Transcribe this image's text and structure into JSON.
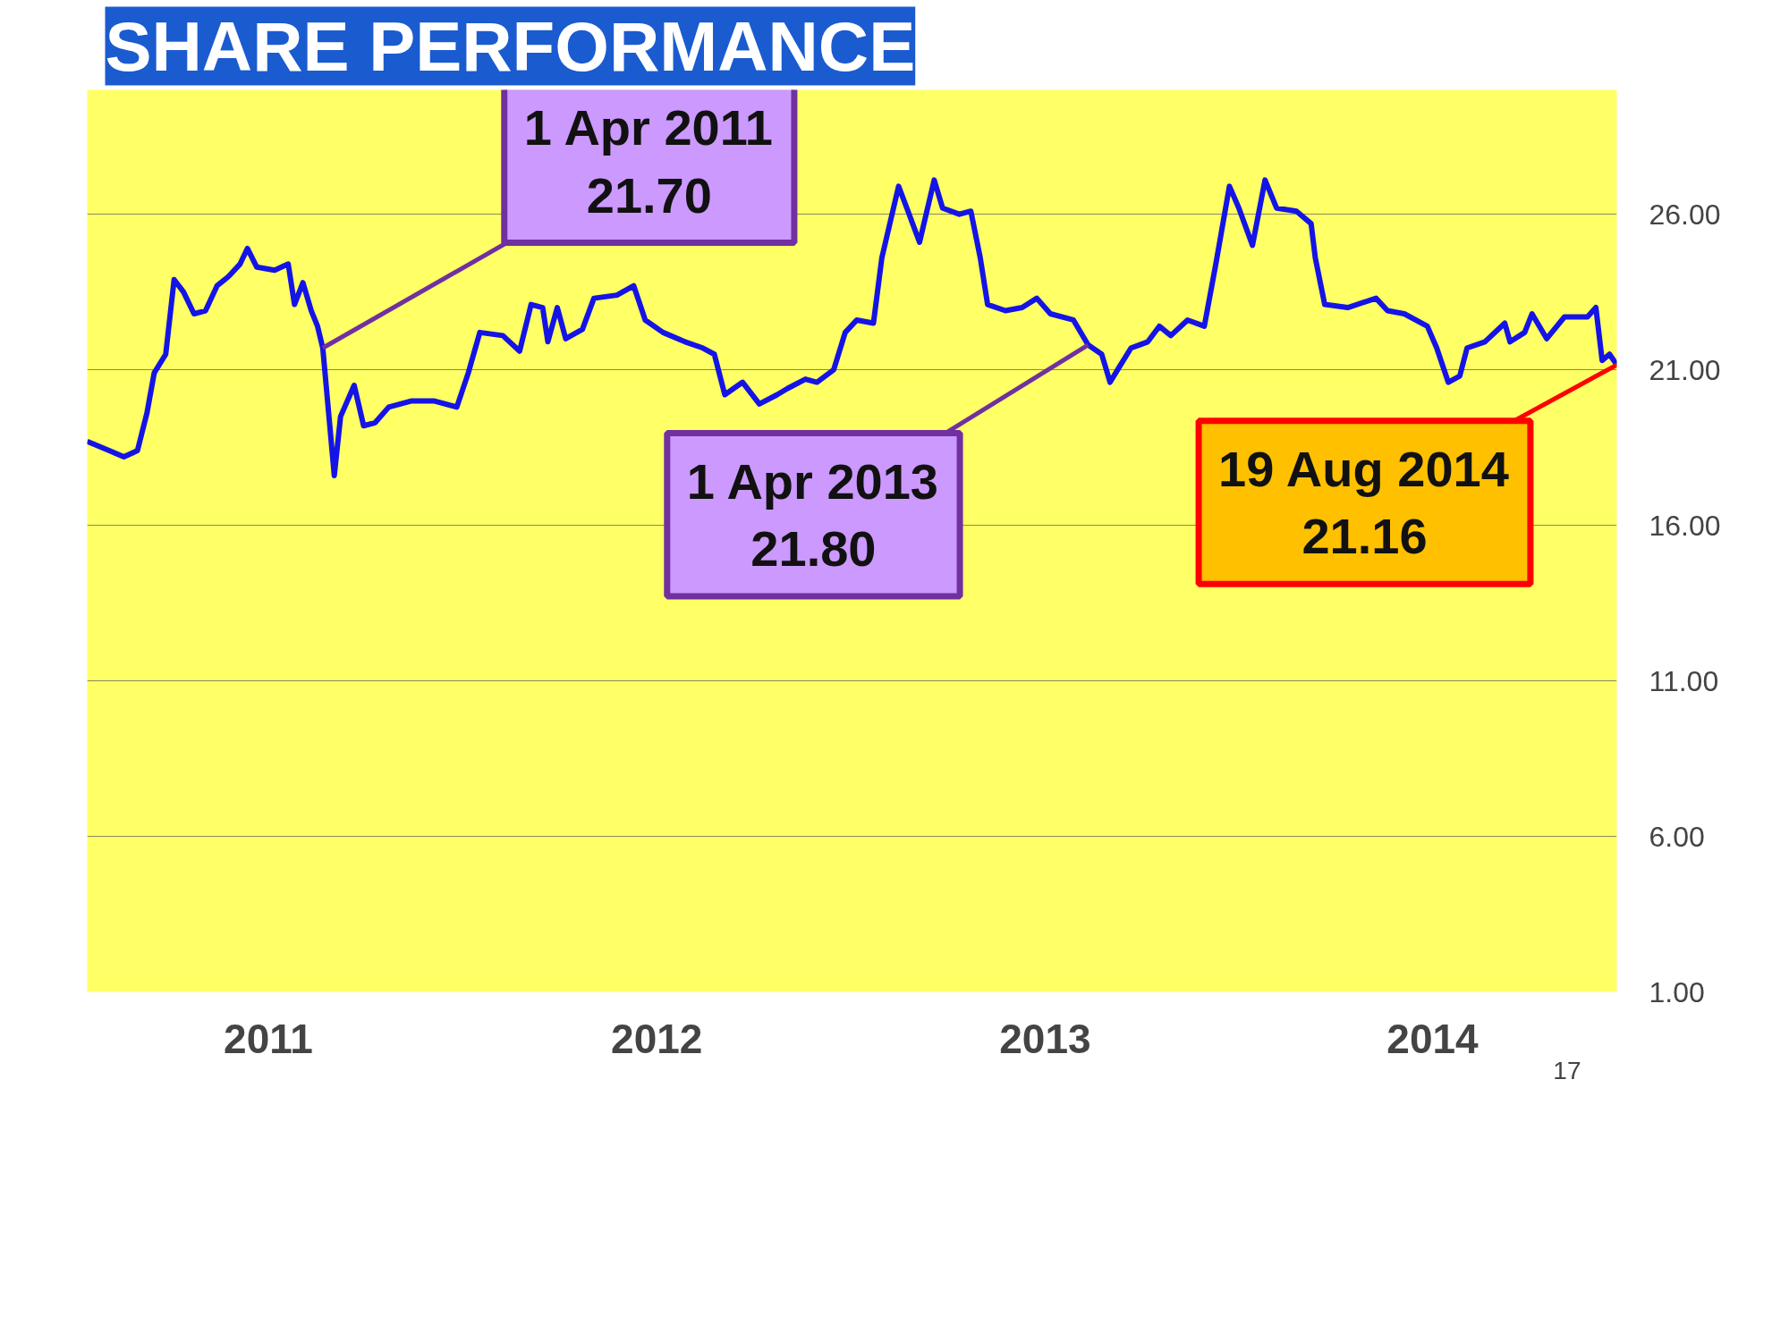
{
  "chart_data": {
    "type": "line",
    "title": "SHARE PERFORMANCE",
    "x": [
      "2010-08-19",
      "2010-09-09",
      "2010-09-23",
      "2010-10-06",
      "2010-10-15",
      "2010-10-22",
      "2010-11-02",
      "2010-11-10",
      "2010-11-19",
      "2010-11-29",
      "2010-12-10",
      "2010-12-21",
      "2011-01-01",
      "2011-01-12",
      "2011-01-19",
      "2011-01-28",
      "2011-02-14",
      "2011-02-27",
      "2011-03-05",
      "2011-03-13",
      "2011-03-21",
      "2011-03-27",
      "2011-04-01",
      "2011-04-12",
      "2011-04-18",
      "2011-05-01",
      "2011-05-10",
      "2011-05-21",
      "2011-06-03",
      "2011-06-25",
      "2011-07-16",
      "2011-08-07",
      "2011-08-18",
      "2011-08-29",
      "2011-09-20",
      "2011-10-06",
      "2011-10-17",
      "2011-10-28",
      "2011-11-02",
      "2011-11-11",
      "2011-11-19",
      "2011-12-05",
      "2011-12-16",
      "2012-01-07",
      "2012-01-23",
      "2012-02-03",
      "2012-02-20",
      "2012-03-12",
      "2012-03-29",
      "2012-04-09",
      "2012-04-19",
      "2012-05-06",
      "2012-05-22",
      "2012-06-08",
      "2012-06-18",
      "2012-07-05",
      "2012-07-16",
      "2012-08-01",
      "2012-08-12",
      "2012-08-23",
      "2012-09-08",
      "2012-09-16",
      "2012-10-02",
      "2012-10-11",
      "2012-10-22",
      "2012-11-05",
      "2012-11-13",
      "2012-11-29",
      "2012-12-10",
      "2012-12-19",
      "2012-12-26",
      "2013-01-12",
      "2013-01-28",
      "2013-02-11",
      "2013-02-24",
      "2013-03-18",
      "2013-04-01",
      "2013-04-14",
      "2013-04-22",
      "2013-05-01",
      "2013-05-12",
      "2013-05-28",
      "2013-06-08",
      "2013-06-19",
      "2013-07-05",
      "2013-07-21",
      "2013-08-01",
      "2013-08-14",
      "2013-08-23",
      "2013-09-05",
      "2013-09-17",
      "2013-09-28",
      "2013-10-17",
      "2013-10-31",
      "2013-11-04",
      "2013-11-13",
      "2013-12-05",
      "2014-01-01",
      "2014-01-12",
      "2014-01-28",
      "2014-02-19",
      "2014-02-28",
      "2014-03-11",
      "2014-03-22",
      "2014-03-29",
      "2014-04-15",
      "2014-05-04",
      "2014-05-09",
      "2014-05-23",
      "2014-05-30",
      "2014-06-13",
      "2014-06-30",
      "2014-07-22",
      "2014-07-30",
      "2014-08-05",
      "2014-08-12",
      "2014-08-19"
    ],
    "series": [
      {
        "color": "#1414e6",
        "values": [
          18.7,
          18.4,
          18.2,
          18.4,
          19.6,
          20.9,
          21.5,
          23.9,
          23.5,
          22.8,
          22.9,
          23.7,
          24.0,
          24.4,
          24.9,
          24.3,
          24.2,
          24.4,
          23.1,
          23.8,
          22.9,
          22.4,
          21.7,
          17.6,
          19.5,
          20.5,
          19.2,
          19.3,
          19.8,
          20.0,
          20.0,
          19.8,
          20.9,
          22.2,
          22.1,
          21.6,
          23.1,
          23.0,
          21.9,
          23.0,
          22.0,
          22.3,
          23.3,
          23.4,
          23.7,
          22.6,
          22.2,
          21.9,
          21.7,
          21.5,
          20.2,
          20.6,
          19.9,
          20.2,
          20.4,
          20.7,
          20.6,
          21.0,
          22.2,
          22.6,
          22.5,
          24.6,
          26.9,
          26.1,
          25.1,
          27.1,
          26.2,
          26.0,
          26.1,
          24.6,
          23.1,
          22.9,
          23.0,
          23.3,
          22.8,
          22.6,
          21.8,
          21.5,
          20.6,
          21.1,
          21.7,
          21.9,
          22.4,
          22.1,
          22.6,
          22.4,
          24.4,
          26.9,
          26.2,
          25.0,
          27.1,
          26.2,
          26.1,
          25.7,
          24.6,
          23.1,
          23.0,
          23.3,
          22.9,
          22.8,
          22.4,
          21.7,
          20.6,
          20.8,
          21.7,
          21.9,
          22.5,
          21.9,
          22.2,
          22.8,
          22.0,
          22.7,
          22.7,
          23.0,
          21.3,
          21.5,
          21.16
        ]
      }
    ],
    "xlim": [
      "2010-08-19",
      "2014-08-19"
    ],
    "xticks": [
      {
        "value": "2011-02-08",
        "label": "2011"
      },
      {
        "value": "2012-02-14",
        "label": "2012"
      },
      {
        "value": "2013-02-19",
        "label": "2013"
      },
      {
        "value": "2014-02-24",
        "label": "2014"
      }
    ],
    "ylim": [
      1,
      30
    ],
    "yticks": [
      {
        "value": 1,
        "label": "1.00"
      },
      {
        "value": 6,
        "label": "6.00"
      },
      {
        "value": 11,
        "label": "11.00"
      },
      {
        "value": 16,
        "label": "16.00"
      },
      {
        "value": 21,
        "label": "21.00"
      },
      {
        "value": 26,
        "label": "26.00"
      }
    ],
    "grid": "y",
    "marker": "none",
    "line_style": "solid",
    "annotations": [
      {
        "text": "1 Apr 2011\n21.70",
        "x": "2011-04-01",
        "y": 21.7
      },
      {
        "text": "1 Apr 2013\n21.80",
        "x": "2013-04-01",
        "y": 21.8
      },
      {
        "text": "19 Aug 2014\n21.16",
        "x": "2014-08-19",
        "y": 21.16
      },
      "17"
    ]
  }
}
